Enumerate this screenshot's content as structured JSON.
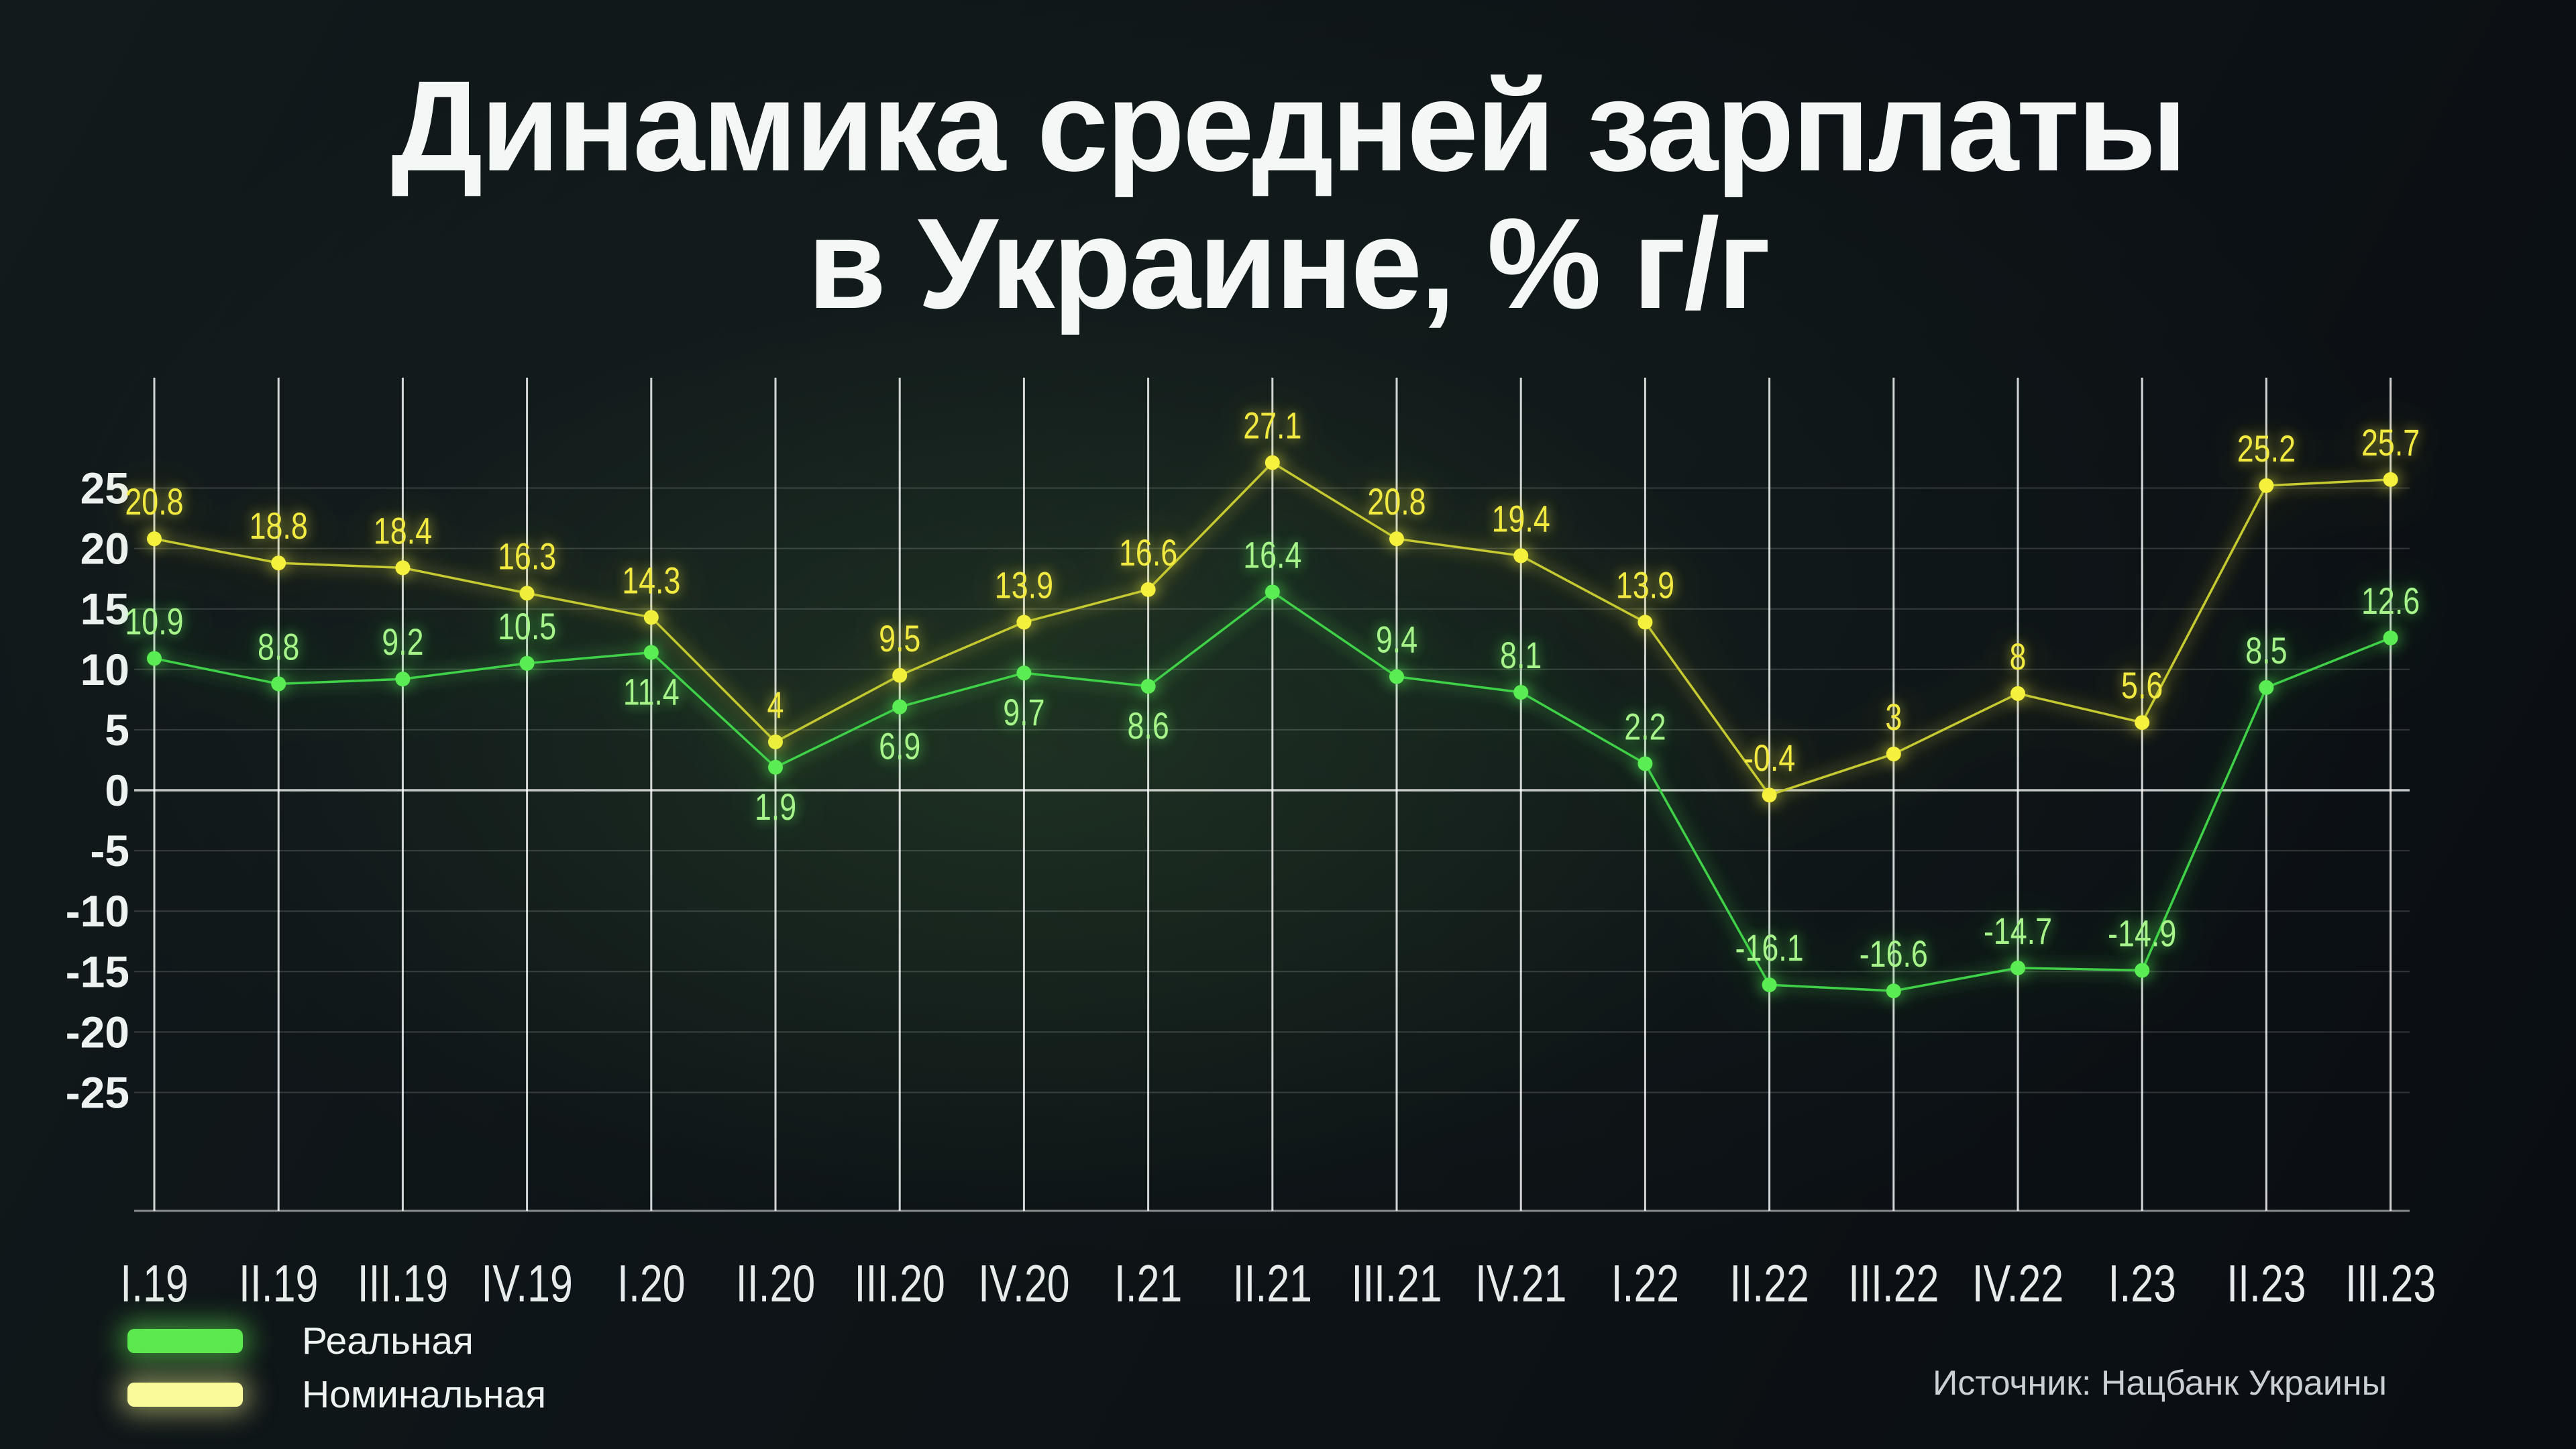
{
  "header": {
    "title_line1": "Динамика средней зарплаты",
    "title_line2": "в Украине, % г/г"
  },
  "legend": {
    "real_label": "Реальная",
    "nominal_label": "Номинальная"
  },
  "source": {
    "text": "Источник: Нацбанк Украины"
  },
  "colors": {
    "background_top": "#121a1c",
    "background_bottom": "#0a0e13",
    "title_text": "#f4f7f6",
    "axis_text": "#eef2f1",
    "x_label_text": "#e7ecea",
    "source_text": "#c9cfd3",
    "grid_vertical": "rgba(255,255,255,0.82)",
    "grid_horizontal": "rgba(255,255,255,0.16)",
    "grid_zero": "rgba(255,255,255,0.75)",
    "grid_bottom": "rgba(255,255,255,0.5)",
    "real_line": "#3fd148",
    "real_marker": "#5bee55",
    "real_label": "#a6f48a",
    "real_swatch": "#5ce84f",
    "real_glow_near": "#58ff57",
    "real_glow_far": "#2f9a3c",
    "nominal_line": "#c6ca33",
    "nominal_marker": "#f6f23c",
    "nominal_label": "#f2ea41",
    "nominal_swatch": "#fbfa9b",
    "nominal_glow_near": "#f9f63e",
    "nominal_glow_far": "#8a8f1f"
  },
  "chart_data": {
    "type": "line",
    "title": "Динамика средней зарплаты в Украине, % г/г",
    "xlabel": "",
    "ylabel": "",
    "categories": [
      "I.19",
      "II.19",
      "III.19",
      "IV.19",
      "I.20",
      "II.20",
      "III.20",
      "IV.20",
      "I.21",
      "II.21",
      "III.21",
      "IV.21",
      "I.22",
      "II.22",
      "III.22",
      "IV.22",
      "I.23",
      "II.23",
      "III.23"
    ],
    "series": [
      {
        "key": "nominal",
        "name": "Номинальная",
        "values": [
          20.8,
          18.8,
          18.4,
          16.3,
          14.3,
          4,
          9.5,
          13.9,
          16.6,
          27.1,
          20.8,
          19.4,
          13.9,
          -0.4,
          3,
          8,
          5.6,
          25.2,
          25.7
        ],
        "label_side": [
          "above",
          "above",
          "above",
          "above",
          "above",
          "above",
          "above",
          "above",
          "above",
          "above",
          "above",
          "above",
          "above",
          "above",
          "above",
          "above",
          "above",
          "above",
          "above"
        ]
      },
      {
        "key": "real",
        "name": "Реальная",
        "values": [
          10.9,
          8.8,
          9.2,
          10.5,
          11.4,
          1.9,
          6.9,
          9.7,
          8.6,
          16.4,
          9.4,
          8.1,
          2.2,
          -16.1,
          -16.6,
          -14.7,
          -14.9,
          8.5,
          12.6
        ],
        "label_side": [
          "above",
          "above",
          "above",
          "above",
          "below",
          "below",
          "below",
          "below",
          "below",
          "above",
          "above",
          "above",
          "above",
          "above",
          "above",
          "above",
          "above",
          "above",
          "above"
        ]
      }
    ],
    "y_ticks": [
      25,
      20,
      15,
      10,
      5,
      0,
      -5,
      -10,
      -15,
      -20,
      -25
    ],
    "ylim": [
      -34.8,
      34.5
    ],
    "grid": {
      "vertical": true,
      "horizontal": true,
      "zero_line_emphasized": true
    },
    "legend_position": "bottom-left",
    "data_labels": true
  }
}
